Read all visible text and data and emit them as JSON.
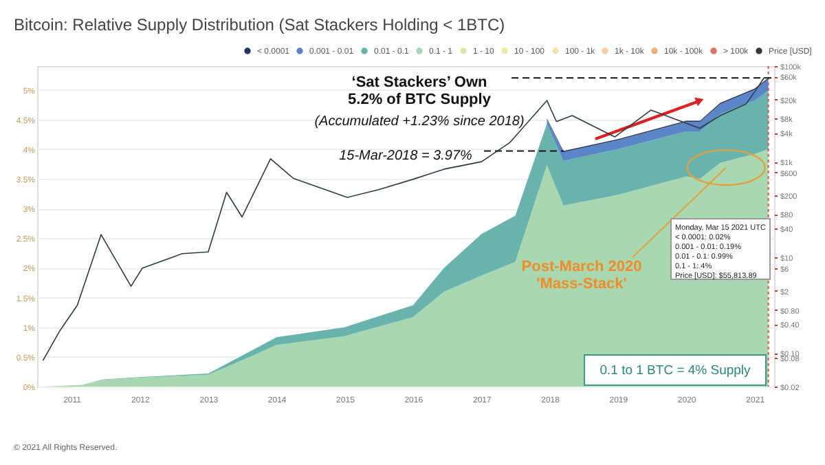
{
  "chart_data": {
    "type": "area",
    "stacked": true,
    "title": "Bitcoin: Relative Supply Distribution (Sat Stackers Holding < 1BTC)",
    "x": [
      "2010-08-01",
      "2011-03-01",
      "2011-06-15",
      "2012-01-01",
      "2013-01-01",
      "2013-05-01",
      "2014-01-01",
      "2015-01-01",
      "2016-01-01",
      "2016-06-15",
      "2017-01-01",
      "2017-07-01",
      "2017-12-17",
      "2018-03-15",
      "2019-01-01",
      "2020-01-01",
      "2020-03-15",
      "2020-07-01",
      "2021-01-01",
      "2021-03-15"
    ],
    "series": [
      {
        "name": "0.1 - 1",
        "color": "#a9d8b0",
        "values": [
          0,
          0.03,
          0.11,
          0.15,
          0.2,
          0.36,
          0.7,
          0.85,
          1.17,
          1.6,
          1.87,
          2.1,
          3.73,
          3.05,
          3.23,
          3.54,
          3.5,
          3.77,
          3.92,
          4.0
        ]
      },
      {
        "name": "0.01 - 0.1",
        "color": "#69b3ae",
        "values": [
          0,
          0,
          0.01,
          0.01,
          0.02,
          0.06,
          0.13,
          0.15,
          0.2,
          0.4,
          0.7,
          0.78,
          0.7,
          0.75,
          0.77,
          0.76,
          0.8,
          0.82,
          0.9,
          0.99
        ]
      },
      {
        "name": "0.001 - 0.01",
        "color": "#5a86c8",
        "values": [
          null,
          null,
          null,
          null,
          null,
          null,
          null,
          null,
          null,
          null,
          null,
          null,
          0.08,
          0.15,
          0.15,
          0.16,
          0.16,
          0.17,
          0.18,
          0.19
        ]
      },
      {
        "name": "< 0.0001",
        "color": "#27345f",
        "values": [
          null,
          null,
          null,
          null,
          null,
          null,
          null,
          null,
          null,
          null,
          null,
          null,
          0.01,
          0.02,
          0.02,
          0.02,
          0.02,
          0.02,
          0.02,
          0.02
        ]
      },
      {
        "name": "1 - 10",
        "color": "#dbe8a8",
        "values": [
          null,
          null,
          null,
          null,
          null,
          null,
          null,
          null,
          null,
          null,
          null,
          null,
          null,
          null,
          null,
          null,
          null,
          null,
          null,
          null
        ]
      },
      {
        "name": "10 - 100",
        "color": "#f0e9a8",
        "values": [
          null,
          null,
          null,
          null,
          null,
          null,
          null,
          null,
          null,
          null,
          null,
          null,
          null,
          null,
          null,
          null,
          null,
          null,
          null,
          null
        ]
      },
      {
        "name": "100 - 1k",
        "color": "#f2e2b0",
        "values": [
          null,
          null,
          null,
          null,
          null,
          null,
          null,
          null,
          null,
          null,
          null,
          null,
          null,
          null,
          null,
          null,
          null,
          null,
          null,
          null
        ]
      },
      {
        "name": "1k - 10k",
        "color": "#f0cfa0",
        "values": [
          null,
          null,
          null,
          null,
          null,
          null,
          null,
          null,
          null,
          null,
          null,
          null,
          null,
          null,
          null,
          null,
          null,
          null,
          null,
          null
        ]
      },
      {
        "name": "10k - 100k",
        "color": "#e8b080",
        "values": [
          null,
          null,
          null,
          null,
          null,
          null,
          null,
          null,
          null,
          null,
          null,
          null,
          null,
          null,
          null,
          null,
          null,
          null,
          null,
          null
        ]
      },
      {
        "name": "> 100k",
        "color": "#e07060",
        "values": [
          null,
          null,
          null,
          null,
          null,
          null,
          null,
          null,
          null,
          null,
          null,
          null,
          null,
          null,
          null,
          null,
          null,
          null,
          null,
          null
        ]
      },
      {
        "name": "Price [USD]",
        "color": "#2f3b3b",
        "type": "line",
        "axis": "y2",
        "x": [
          "2010-08-01",
          "2010-11-01",
          "2011-02-01",
          "2011-06-08",
          "2011-11-15",
          "2012-01-15",
          "2012-08-15",
          "2013-01-01",
          "2013-04-09",
          "2013-07-01",
          "2013-11-30",
          "2014-04-01",
          "2015-01-15",
          "2015-07-01",
          "2016-01-01",
          "2016-06-15",
          "2017-01-01",
          "2017-06-01",
          "2017-12-17",
          "2018-02-06",
          "2018-05-01",
          "2018-12-15",
          "2019-06-26",
          "2020-03-13",
          "2020-07-01",
          "2020-11-15",
          "2021-01-01",
          "2021-02-21",
          "2021-03-15"
        ],
        "values": [
          0.07,
          0.3,
          1,
          30,
          2.5,
          6,
          12,
          13,
          230,
          70,
          1150,
          450,
          180,
          260,
          430,
          700,
          1000,
          2500,
          19000,
          6900,
          9200,
          3300,
          12000,
          5000,
          9200,
          16000,
          29000,
          57000,
          55813.89
        ]
      }
    ],
    "xlim": [
      "2010-07-01",
      "2021-04-15"
    ],
    "xticks": [
      {
        "value": "2011",
        "label": "2011"
      },
      {
        "value": "2012",
        "label": "2012"
      },
      {
        "value": "2013",
        "label": "2013"
      },
      {
        "value": "2014",
        "label": "2014"
      },
      {
        "value": "2015",
        "label": "2015"
      },
      {
        "value": "2016",
        "label": "2016"
      },
      {
        "value": "2017",
        "label": "2017"
      },
      {
        "value": "2018",
        "label": "2018"
      },
      {
        "value": "2019",
        "label": "2019"
      },
      {
        "value": "2020",
        "label": "2020"
      },
      {
        "value": "2021",
        "label": "2021"
      }
    ],
    "ylim": [
      0,
      5.4
    ],
    "yticks": [
      {
        "value": 0,
        "label": "0%"
      },
      {
        "value": 0.5,
        "label": "0.5%"
      },
      {
        "value": 1,
        "label": "1%"
      },
      {
        "value": 1.5,
        "label": "1.5%"
      },
      {
        "value": 2,
        "label": "2%"
      },
      {
        "value": 2.5,
        "label": "2.5%"
      },
      {
        "value": 3,
        "label": "3%"
      },
      {
        "value": 3.5,
        "label": "3.5%"
      },
      {
        "value": 4,
        "label": "4%"
      },
      {
        "value": 4.5,
        "label": "4.5%"
      },
      {
        "value": 5,
        "label": "5%"
      }
    ],
    "y2lim": [
      0.02,
      100000
    ],
    "y2ticks": [
      {
        "value": 0.02,
        "label": "$0.02"
      },
      {
        "value": 0.08,
        "label": "$0.08"
      },
      {
        "value": 0.1,
        "label": "$0.10"
      },
      {
        "value": 0.4,
        "label": "$0.40"
      },
      {
        "value": 0.8,
        "label": "$0.80"
      },
      {
        "value": 2,
        "label": "$2"
      },
      {
        "value": 6,
        "label": "$6"
      },
      {
        "value": 10,
        "label": "$10"
      },
      {
        "value": 40,
        "label": "$40"
      },
      {
        "value": 80,
        "label": "$80"
      },
      {
        "value": 200,
        "label": "$200"
      },
      {
        "value": 600,
        "label": "$600"
      },
      {
        "value": 1000,
        "label": "$1k"
      },
      {
        "value": 4000,
        "label": "$4k"
      },
      {
        "value": 8000,
        "label": "$8k"
      },
      {
        "value": 20000,
        "label": "$20k"
      },
      {
        "value": 60000,
        "label": "$60k"
      },
      {
        "value": 100000,
        "label": "$100k"
      }
    ],
    "log": "y2",
    "grid": "y",
    "legend": "top right",
    "marker": "none",
    "ref_lines": [
      {
        "axis": "x",
        "value": "2021-03-15",
        "color": "#e05050",
        "line_style": "dotted"
      },
      {
        "axis": "y",
        "value": 5.2,
        "label": "‘Sat Stackers’ Own\n5.2% of BTC Supply",
        "color": "#111111",
        "line_style": "dashed"
      },
      {
        "axis": "y",
        "value": 3.97,
        "label": "15-Mar-2018 = 3.97%",
        "color": "#111111",
        "line_style": "dashed"
      }
    ],
    "annotations": [
      "(Accumulated +1.23% since 2018)",
      {
        "text": "Post-March 2020\n'Mass-Stack'",
        "x": "2020-08-01",
        "y": 3.69
      },
      "0.1 to 1 BTC = 4% Supply",
      "Monday, Mar 15 2021 UTC\n< 0.0001: 0.02%\n0.001 - 0.01: 0.19%\n0.01 - 0.1: 0.99%\n0.1 - 1: 4%\nPrice [USD]: $55,813.89",
      "© 2021 All Rights Reserved."
    ]
  }
}
